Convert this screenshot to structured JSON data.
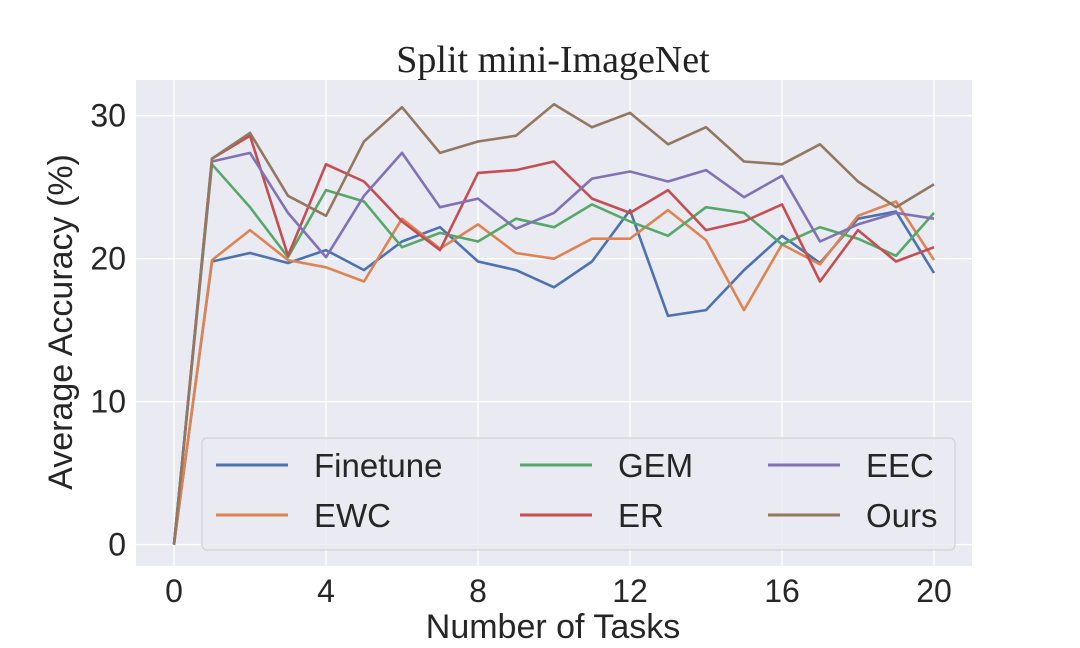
{
  "chart_data": {
    "type": "line",
    "title": "Split mini-ImageNet",
    "xlabel": "Number of Tasks",
    "ylabel": "Average Accuracy (%)",
    "xlim": [
      -1,
      21
    ],
    "ylim": [
      -1.5,
      32.5
    ],
    "xticks": [
      0,
      4,
      8,
      12,
      16,
      20
    ],
    "yticks": [
      0,
      10,
      20,
      30
    ],
    "grid": true,
    "legend": "lower-center",
    "x": [
      0,
      1,
      2,
      3,
      4,
      5,
      6,
      7,
      8,
      9,
      10,
      11,
      12,
      13,
      14,
      15,
      16,
      17,
      18,
      19,
      20
    ],
    "series": [
      {
        "name": "Finetune",
        "color": "#4c72b0",
        "values": [
          0,
          19.8,
          20.4,
          19.7,
          20.6,
          19.2,
          21.2,
          22.2,
          19.8,
          19.2,
          18.0,
          19.8,
          23.4,
          16.0,
          16.4,
          19.2,
          21.6,
          19.7,
          22.8,
          23.3,
          19.0
        ]
      },
      {
        "name": "EWC",
        "color": "#dd8452",
        "values": [
          0,
          19.9,
          22.0,
          19.9,
          19.4,
          18.4,
          22.8,
          20.7,
          22.4,
          20.4,
          20.0,
          21.4,
          21.4,
          23.4,
          21.3,
          16.4,
          21.0,
          19.6,
          23.0,
          24.0,
          19.9
        ]
      },
      {
        "name": "GEM",
        "color": "#55a868",
        "values": [
          0,
          26.6,
          23.6,
          20.1,
          24.8,
          24.0,
          20.8,
          21.8,
          21.2,
          22.8,
          22.2,
          23.8,
          22.6,
          21.6,
          23.6,
          23.2,
          21.0,
          22.2,
          21.4,
          20.2,
          23.2
        ]
      },
      {
        "name": "ER",
        "color": "#c44e52",
        "values": [
          0,
          27.0,
          28.6,
          20.2,
          26.6,
          25.4,
          22.6,
          20.6,
          26.0,
          26.2,
          26.8,
          24.2,
          23.2,
          24.8,
          22.0,
          22.6,
          23.8,
          18.4,
          22.0,
          19.8,
          20.8
        ]
      },
      {
        "name": "EEC",
        "color": "#8172b3",
        "values": [
          0,
          26.8,
          27.4,
          23.2,
          20.1,
          24.4,
          27.4,
          23.6,
          24.2,
          22.1,
          23.2,
          25.6,
          26.1,
          25.4,
          26.2,
          24.3,
          25.8,
          21.2,
          22.4,
          23.2,
          22.8
        ]
      },
      {
        "name": "Ours",
        "color": "#937860",
        "values": [
          0,
          27.0,
          28.8,
          24.4,
          23.0,
          28.2,
          30.6,
          27.4,
          28.2,
          28.6,
          30.8,
          29.2,
          30.2,
          28.0,
          29.2,
          26.8,
          26.6,
          28.0,
          25.4,
          23.6,
          25.2
        ]
      }
    ]
  }
}
